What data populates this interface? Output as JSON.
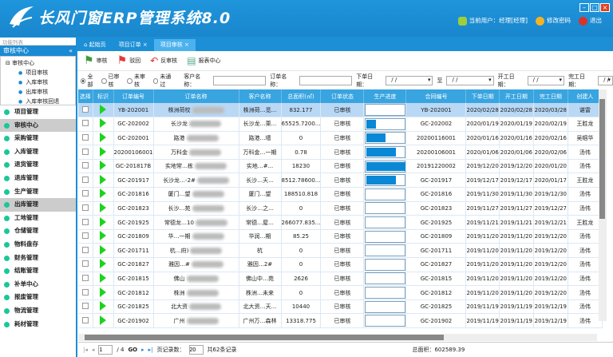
{
  "app": {
    "title": "长风门窗ERP管理系统8.0",
    "current_user": "当前用户：经理[经理]",
    "change_password": "修改密码",
    "logout": "退出",
    "accent": "#1c8fd6"
  },
  "sidebar": {
    "panel_label": "功能列表",
    "section": "审核中心",
    "tree_root": "审核中心",
    "tree_items": [
      "项目审核",
      "入库审核",
      "出库审核",
      "入库审核回退"
    ],
    "menu": [
      {
        "label": "项目管理",
        "icon": "clipboard-icon"
      },
      {
        "label": "审核中心",
        "icon": "document-icon",
        "selected": true
      },
      {
        "label": "采购管理",
        "icon": "cart-icon"
      },
      {
        "label": "入库管理",
        "icon": "cart-in-icon"
      },
      {
        "label": "退货管理",
        "icon": "cart-return-icon"
      },
      {
        "label": "退库管理",
        "icon": "dot-icon"
      },
      {
        "label": "生产管理",
        "icon": "production-icon"
      },
      {
        "label": "出库管理",
        "icon": "cart-out-icon",
        "selected": true
      },
      {
        "label": "工地管理",
        "icon": "dot-icon"
      },
      {
        "label": "仓储管理",
        "icon": "warehouse-icon"
      },
      {
        "label": "物料盘存",
        "icon": "dot-icon"
      },
      {
        "label": "财务管理",
        "icon": "finance-icon"
      },
      {
        "label": "结账管理",
        "icon": "dot-icon"
      },
      {
        "label": "补单中心",
        "icon": "dot-icon"
      },
      {
        "label": "报废管理",
        "icon": "dot-icon"
      },
      {
        "label": "物流管理",
        "icon": "dot-icon"
      },
      {
        "label": "耗材管理",
        "icon": "dot-icon"
      }
    ]
  },
  "tabs": [
    {
      "label": "起始页"
    },
    {
      "label": "项目订单"
    },
    {
      "label": "项目审核",
      "active": true
    }
  ],
  "toolbar": {
    "approve": "审核",
    "reject": "驳回",
    "unapprove": "反审核",
    "report": "报表中心"
  },
  "filter": {
    "radios": [
      "全部",
      "已审核",
      "未审核",
      "未通过"
    ],
    "selected": "全部",
    "customer_label": "客户名称：",
    "order_label": "订单名称：",
    "order_date_label": "下单日期：",
    "to_label": "至",
    "start_date_label": "开工日期：",
    "finish_date_label": "完工日期：",
    "date_placeholder": "/  /"
  },
  "table": {
    "columns": [
      "选择",
      "标识",
      "订单编号",
      "订单名称",
      "客户名称",
      "总面积(㎡)",
      "订单状态",
      "生产进度",
      "合同编号",
      "下单日期",
      "开工日期",
      "完工日期",
      "创建人"
    ],
    "rows": [
      {
        "no": "YB-202001",
        "name": "株洲荷校",
        "customer": "株洲荷…觅...",
        "area": "832.177",
        "status": "已审核",
        "progress": 0,
        "contract": "YB-202001",
        "order": "2020/02/28",
        "start": "2020/02/28",
        "end": "2020/03/28",
        "creator": "谌雷"
      },
      {
        "no": "GC-202002",
        "name": "长沙龙",
        "customer": "长沙龙…栗...",
        "area": "65525.7200...",
        "status": "已审核",
        "progress": 0.25,
        "contract": "GC-202002",
        "order": "2020/01/19",
        "start": "2020/01/19",
        "end": "2020/02/19",
        "creator": "王胜龙"
      },
      {
        "no": "GC-202001",
        "name": "路港",
        "customer": "路港…墙",
        "area": "0",
        "status": "已审核",
        "progress": 0.5,
        "contract": "20200116001",
        "order": "2020/01/16",
        "start": "2020/01/16",
        "end": "2020/02/16",
        "creator": "吴帼华"
      },
      {
        "no": "20200106001",
        "name": "万科金",
        "customer": "万科金…一期",
        "area": "0.78",
        "status": "已审核",
        "progress": 0.75,
        "contract": "20200106001",
        "order": "2020/01/06",
        "start": "2020/01/06",
        "end": "2020/02/06",
        "creator": "汤伟"
      },
      {
        "no": "GC-201817B",
        "name": "实地常…栋",
        "customer": "实地…#...",
        "area": "18230",
        "status": "已审核",
        "progress": 1,
        "contract": "20191220002",
        "order": "2019/12/20",
        "start": "2019/12/20",
        "end": "2020/01/20",
        "creator": "汤伟"
      },
      {
        "no": "GC-201917",
        "name": "长沙龙…-2#",
        "customer": "长沙…天...",
        "area": "8512.78600...",
        "status": "已审核",
        "progress": 0.75,
        "contract": "GC-201917",
        "order": "2019/12/17",
        "start": "2019/12/17",
        "end": "2020/01/17",
        "creator": "王胜龙"
      },
      {
        "no": "GC-201816",
        "name": "厦门…望",
        "customer": "厦门…望",
        "area": "188510.818",
        "status": "已审核",
        "progress": 0,
        "contract": "GC-201816",
        "order": "2019/11/30",
        "start": "2019/11/30",
        "end": "2019/12/30",
        "creator": "汤伟"
      },
      {
        "no": "GC-201823",
        "name": "长沙…苑",
        "customer": "长沙…之...",
        "area": "0",
        "status": "已审核",
        "progress": 0,
        "contract": "GC-201823",
        "order": "2019/11/27",
        "start": "2019/11/27",
        "end": "2019/12/27",
        "creator": "汤伟"
      },
      {
        "no": "GC-201925",
        "name": "常德龙…10",
        "customer": "常德…屋...",
        "area": "266077.835...",
        "status": "已审核",
        "progress": 0,
        "contract": "GC-201925",
        "order": "2019/11/21",
        "start": "2019/11/21",
        "end": "2019/12/21",
        "creator": "王胜龙"
      },
      {
        "no": "GC-201809",
        "name": "华…一期",
        "customer": "华润…期",
        "area": "85.25",
        "status": "已审核",
        "progress": 0,
        "contract": "GC-201809",
        "order": "2019/11/20",
        "start": "2019/11/20",
        "end": "2019/12/20",
        "creator": "汤伟"
      },
      {
        "no": "GC-201711",
        "name": "杭…府)",
        "customer": "杭",
        "area": "0",
        "status": "已审核",
        "progress": 0,
        "contract": "GC-201711",
        "order": "2019/11/20",
        "start": "2019/11/20",
        "end": "2019/12/20",
        "creator": "汤伟"
      },
      {
        "no": "GC-201827",
        "name": "雅因…#",
        "customer": "雅因…2#",
        "area": "0",
        "status": "已审核",
        "progress": 0,
        "contract": "GC-201827",
        "order": "2019/11/20",
        "start": "2019/11/20",
        "end": "2019/12/20",
        "creator": "汤伟"
      },
      {
        "no": "GC-201815",
        "name": "佛山",
        "customer": "佛山中…苑",
        "area": "2626",
        "status": "已审核",
        "progress": 0,
        "contract": "GC-201815",
        "order": "2019/11/20",
        "start": "2019/11/20",
        "end": "2019/12/20",
        "creator": "汤伟"
      },
      {
        "no": "GC-201812",
        "name": "株洲",
        "customer": "株洲…未来",
        "area": "0",
        "status": "已审核",
        "progress": 0,
        "contract": "GC-201812",
        "order": "2019/11/20",
        "start": "2019/11/20",
        "end": "2019/12/20",
        "creator": "汤伟"
      },
      {
        "no": "GC-201825",
        "name": "北大资",
        "customer": "北大资…天...",
        "area": "10440",
        "status": "已审核",
        "progress": 0,
        "contract": "GC-201825",
        "order": "2019/11/19",
        "start": "2019/11/19",
        "end": "2019/12/19",
        "creator": "汤伟"
      },
      {
        "no": "GC-201902",
        "name": "广州",
        "customer": "广州万…森林",
        "area": "13318.775",
        "status": "已审核",
        "progress": 0,
        "contract": "GC-201902",
        "order": "2019/11/19",
        "start": "2019/11/19",
        "end": "2019/12/19",
        "creator": "汤伟"
      }
    ]
  },
  "pager": {
    "page": "1",
    "total_pages": "/ 4",
    "go": "GO",
    "page_size_label": "页记录数：",
    "page_size": "20",
    "total_records": "共62条记录"
  },
  "summary": {
    "total_area": "总面积：602589.39"
  }
}
